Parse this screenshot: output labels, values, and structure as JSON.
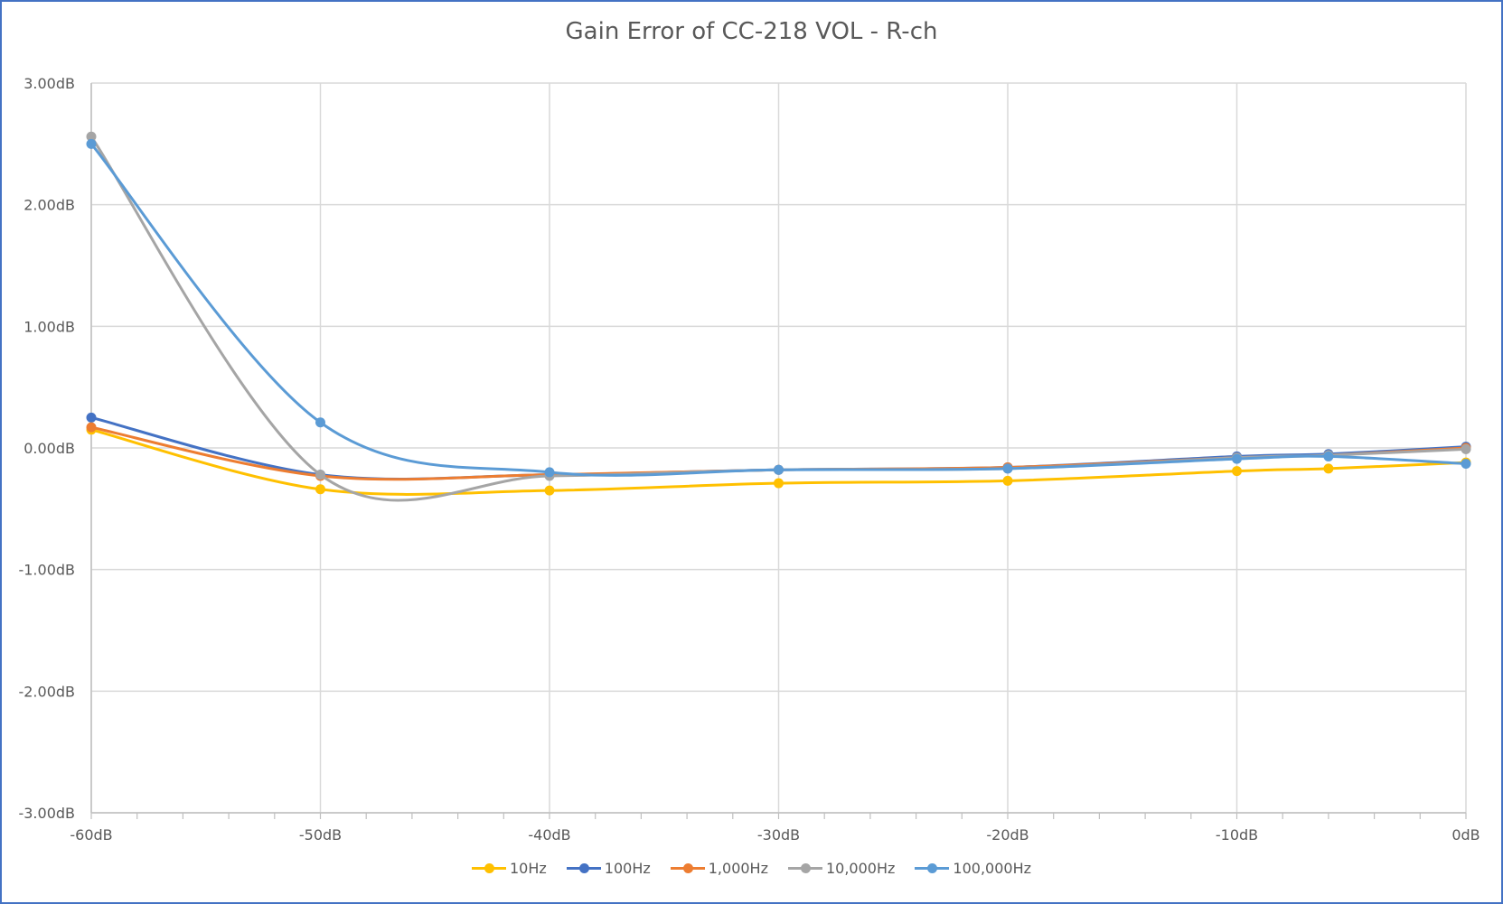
{
  "chart_data": {
    "type": "line",
    "title": "Gain Error of CC-218 VOL - R-ch",
    "xlabel": "",
    "ylabel": "",
    "x": [
      -60,
      -50,
      -40,
      -30,
      -20,
      -10,
      -6,
      0
    ],
    "x_ticks": [
      -60,
      -50,
      -40,
      -30,
      -20,
      -10,
      0
    ],
    "x_tick_labels": [
      "-60dB",
      "-50dB",
      "-40dB",
      "-30dB",
      "-20dB",
      "-10dB",
      "0dB"
    ],
    "y_ticks": [
      3,
      2,
      1,
      0,
      -1,
      -2,
      -3
    ],
    "y_tick_labels": [
      "3.00dB",
      "2.00dB",
      "1.00dB",
      "0.00dB",
      "-1.00dB",
      "-2.00dB",
      "-3.00dB"
    ],
    "xlim": [
      -60,
      0
    ],
    "ylim": [
      -3,
      3
    ],
    "grid": true,
    "legend_position": "bottom",
    "smooth": true,
    "series": [
      {
        "name": "10Hz",
        "color": "#ffc000",
        "values": [
          0.15,
          -0.34,
          -0.35,
          -0.29,
          -0.27,
          -0.19,
          -0.17,
          -0.12
        ]
      },
      {
        "name": "100Hz",
        "color": "#4472c4",
        "values": [
          0.25,
          -0.22,
          -0.22,
          -0.18,
          -0.16,
          -0.07,
          -0.05,
          0.01
        ]
      },
      {
        "name": "1,000Hz",
        "color": "#ed7d31",
        "values": [
          0.17,
          -0.23,
          -0.22,
          -0.18,
          -0.16,
          -0.08,
          -0.06,
          0.0
        ]
      },
      {
        "name": "10,000Hz",
        "color": "#a5a5a5",
        "values": [
          2.56,
          -0.22,
          -0.23,
          -0.18,
          -0.17,
          -0.08,
          -0.06,
          -0.01
        ]
      },
      {
        "name": "100,000Hz",
        "color": "#5b9bd5",
        "values": [
          2.5,
          0.21,
          -0.2,
          -0.18,
          -0.17,
          -0.09,
          -0.07,
          -0.13
        ]
      }
    ]
  }
}
